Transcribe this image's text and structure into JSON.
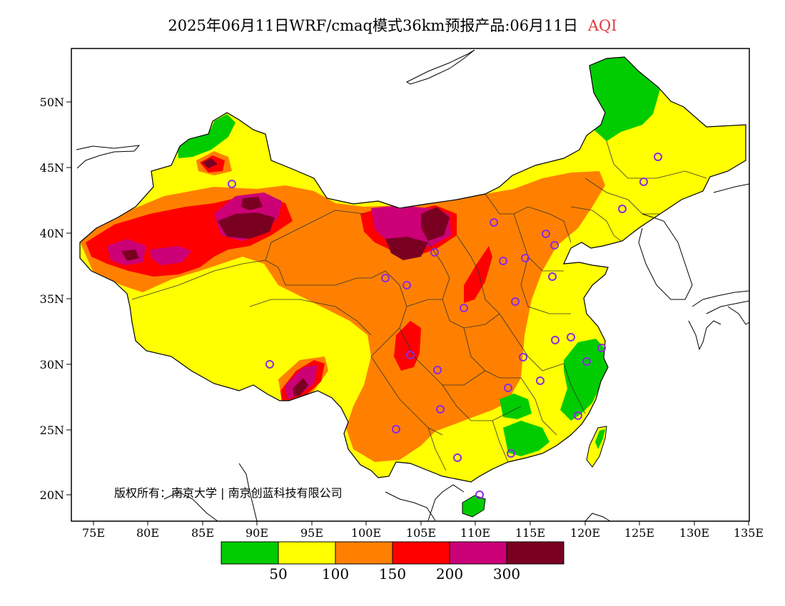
{
  "title": {
    "main": "2025年06月11日WRF/cmaq模式36km预报产品:06月11日",
    "variable": "AQI"
  },
  "axes": {
    "lat_labels": [
      "50N",
      "45N",
      "40N",
      "35N",
      "30N",
      "25N",
      "20N"
    ],
    "lon_labels": [
      "75E",
      "80E",
      "85E",
      "90E",
      "95E",
      "100E",
      "105E",
      "110E",
      "115E",
      "120E",
      "125E",
      "130E",
      "135E"
    ]
  },
  "copyright": "版权所有：南京大学 | 南京创蓝科技有限公司",
  "legend": {
    "colors": [
      "#00cc00",
      "#ffff00",
      "#ff8000",
      "#ff0000",
      "#cc0077",
      "#7a0022"
    ],
    "tick_labels": [
      "50",
      "100",
      "150",
      "200",
      "300"
    ]
  },
  "colors": {
    "ocean": "#ffffff",
    "border": "#000000",
    "station_marker": "#8a2be2"
  }
}
